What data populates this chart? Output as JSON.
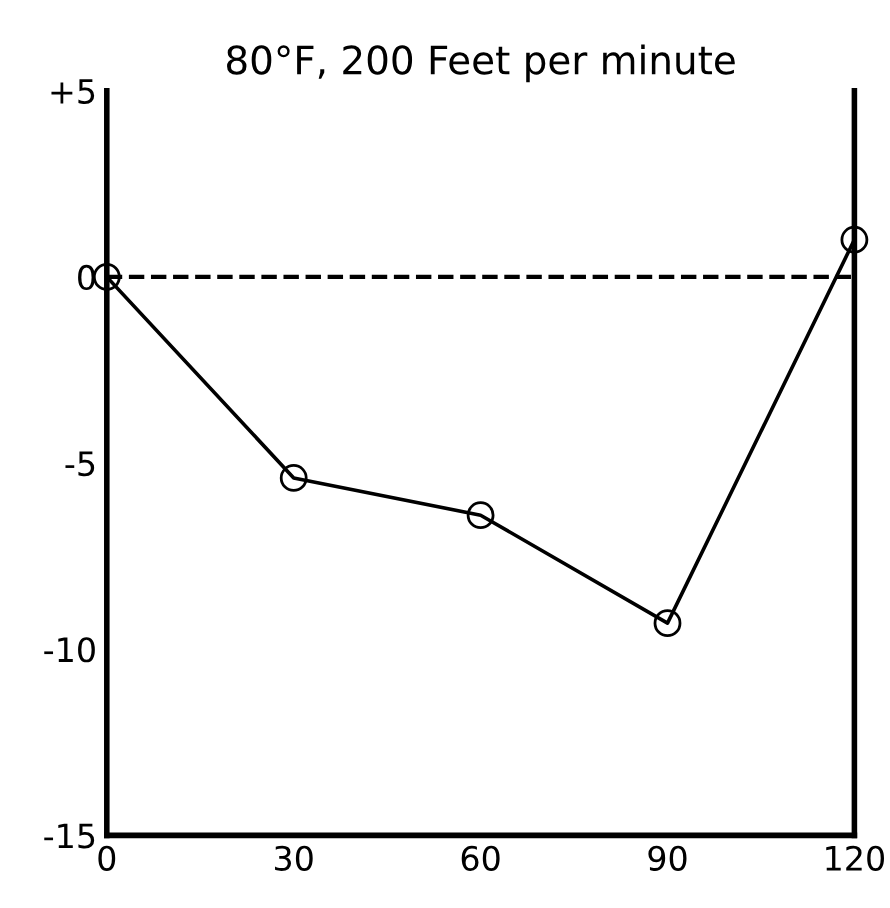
{
  "chart_data": {
    "type": "line",
    "title": "80°F, 200 Feet per minute",
    "x": [
      0,
      30,
      60,
      90,
      120
    ],
    "series": [
      {
        "color": "#000000",
        "values": [
          0,
          -5.4,
          -6.4,
          -9.3,
          1
        ]
      }
    ],
    "marker": "circle",
    "line_style": "solid",
    "xlim": [
      0,
      120
    ],
    "ylim": [
      -15,
      5
    ],
    "xticks": [
      0,
      30,
      60,
      90,
      120
    ],
    "yticks": [
      {
        "value": 5,
        "label": "+5"
      },
      0,
      -5,
      -10,
      -15
    ],
    "ref_lines": [
      {
        "axis": "y",
        "value": 0,
        "line_style": "dashed",
        "color": "#000000"
      }
    ],
    "grid": false,
    "legend": false
  }
}
